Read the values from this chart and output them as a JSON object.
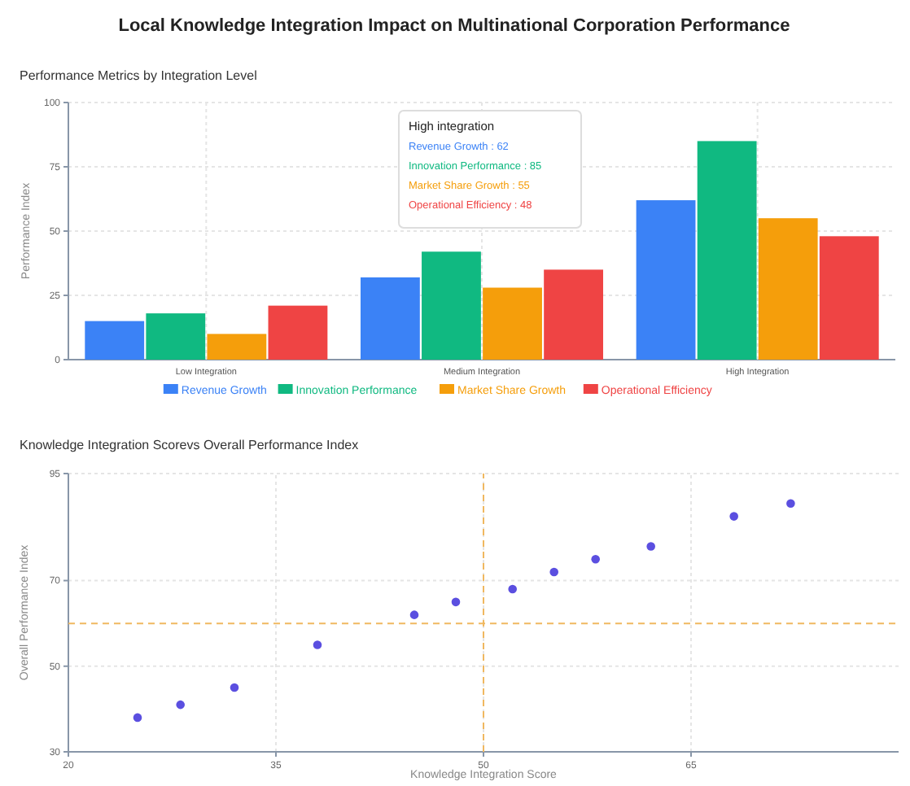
{
  "chart_data": [
    {
      "type": "bar",
      "title": "Local Knowledge Integration Impact on Multinational Corporation Performance",
      "subtitle": "Performance Metrics by Integration Level",
      "ylabel": "Performance Index",
      "categories": [
        "Low Integration",
        "Medium Integration",
        "High Integration"
      ],
      "series": [
        {
          "name": "Revenue Growth",
          "color": "#3b82f6",
          "values": [
            15,
            32,
            62
          ]
        },
        {
          "name": "Innovation Performance",
          "color": "#10b981",
          "values": [
            18,
            42,
            85
          ]
        },
        {
          "name": "Market Share Growth",
          "color": "#f59e0b",
          "values": [
            10,
            28,
            55
          ]
        },
        {
          "name": "Operational Efficiency",
          "color": "#ef4444",
          "values": [
            21,
            35,
            48
          ]
        }
      ],
      "ylim": [
        0,
        100
      ],
      "yticks": [
        0,
        25,
        50,
        75,
        100
      ],
      "grid": true,
      "legend": "bottom",
      "annotations": [
        "High integration",
        "Revenue Growth : 62",
        "Innovation Performance : 85",
        "Market Share Growth : 55",
        "Operational Efficiency : 48"
      ]
    },
    {
      "type": "scatter",
      "title": "Knowledge Integration Scorevs Overall Performance Index",
      "xlabel": "Knowledge Integration Score",
      "ylabel": "Overall Performance Index",
      "x": [
        25,
        28.1,
        32,
        38,
        45,
        48,
        52.1,
        55.1,
        58.1,
        62.1,
        68.1,
        72.2
      ],
      "series": [
        {
          "color": "#5b4fe0",
          "values": [
            38,
            41,
            45,
            55,
            62,
            65,
            68,
            72,
            75,
            78,
            85,
            88
          ]
        }
      ],
      "xlim": [
        20,
        80
      ],
      "xticks": [
        20,
        35,
        50,
        65
      ],
      "ylim": [
        30,
        95
      ],
      "yticks": [
        30,
        50,
        70,
        95
      ],
      "grid": true,
      "marker": "circle",
      "ref_lines": [
        {
          "axis": "x",
          "value": 50,
          "color": "#f0b860",
          "line_style": "dashed"
        },
        {
          "axis": "y",
          "value": 60,
          "color": "#f0b860",
          "line_style": "dashed"
        }
      ]
    }
  ]
}
